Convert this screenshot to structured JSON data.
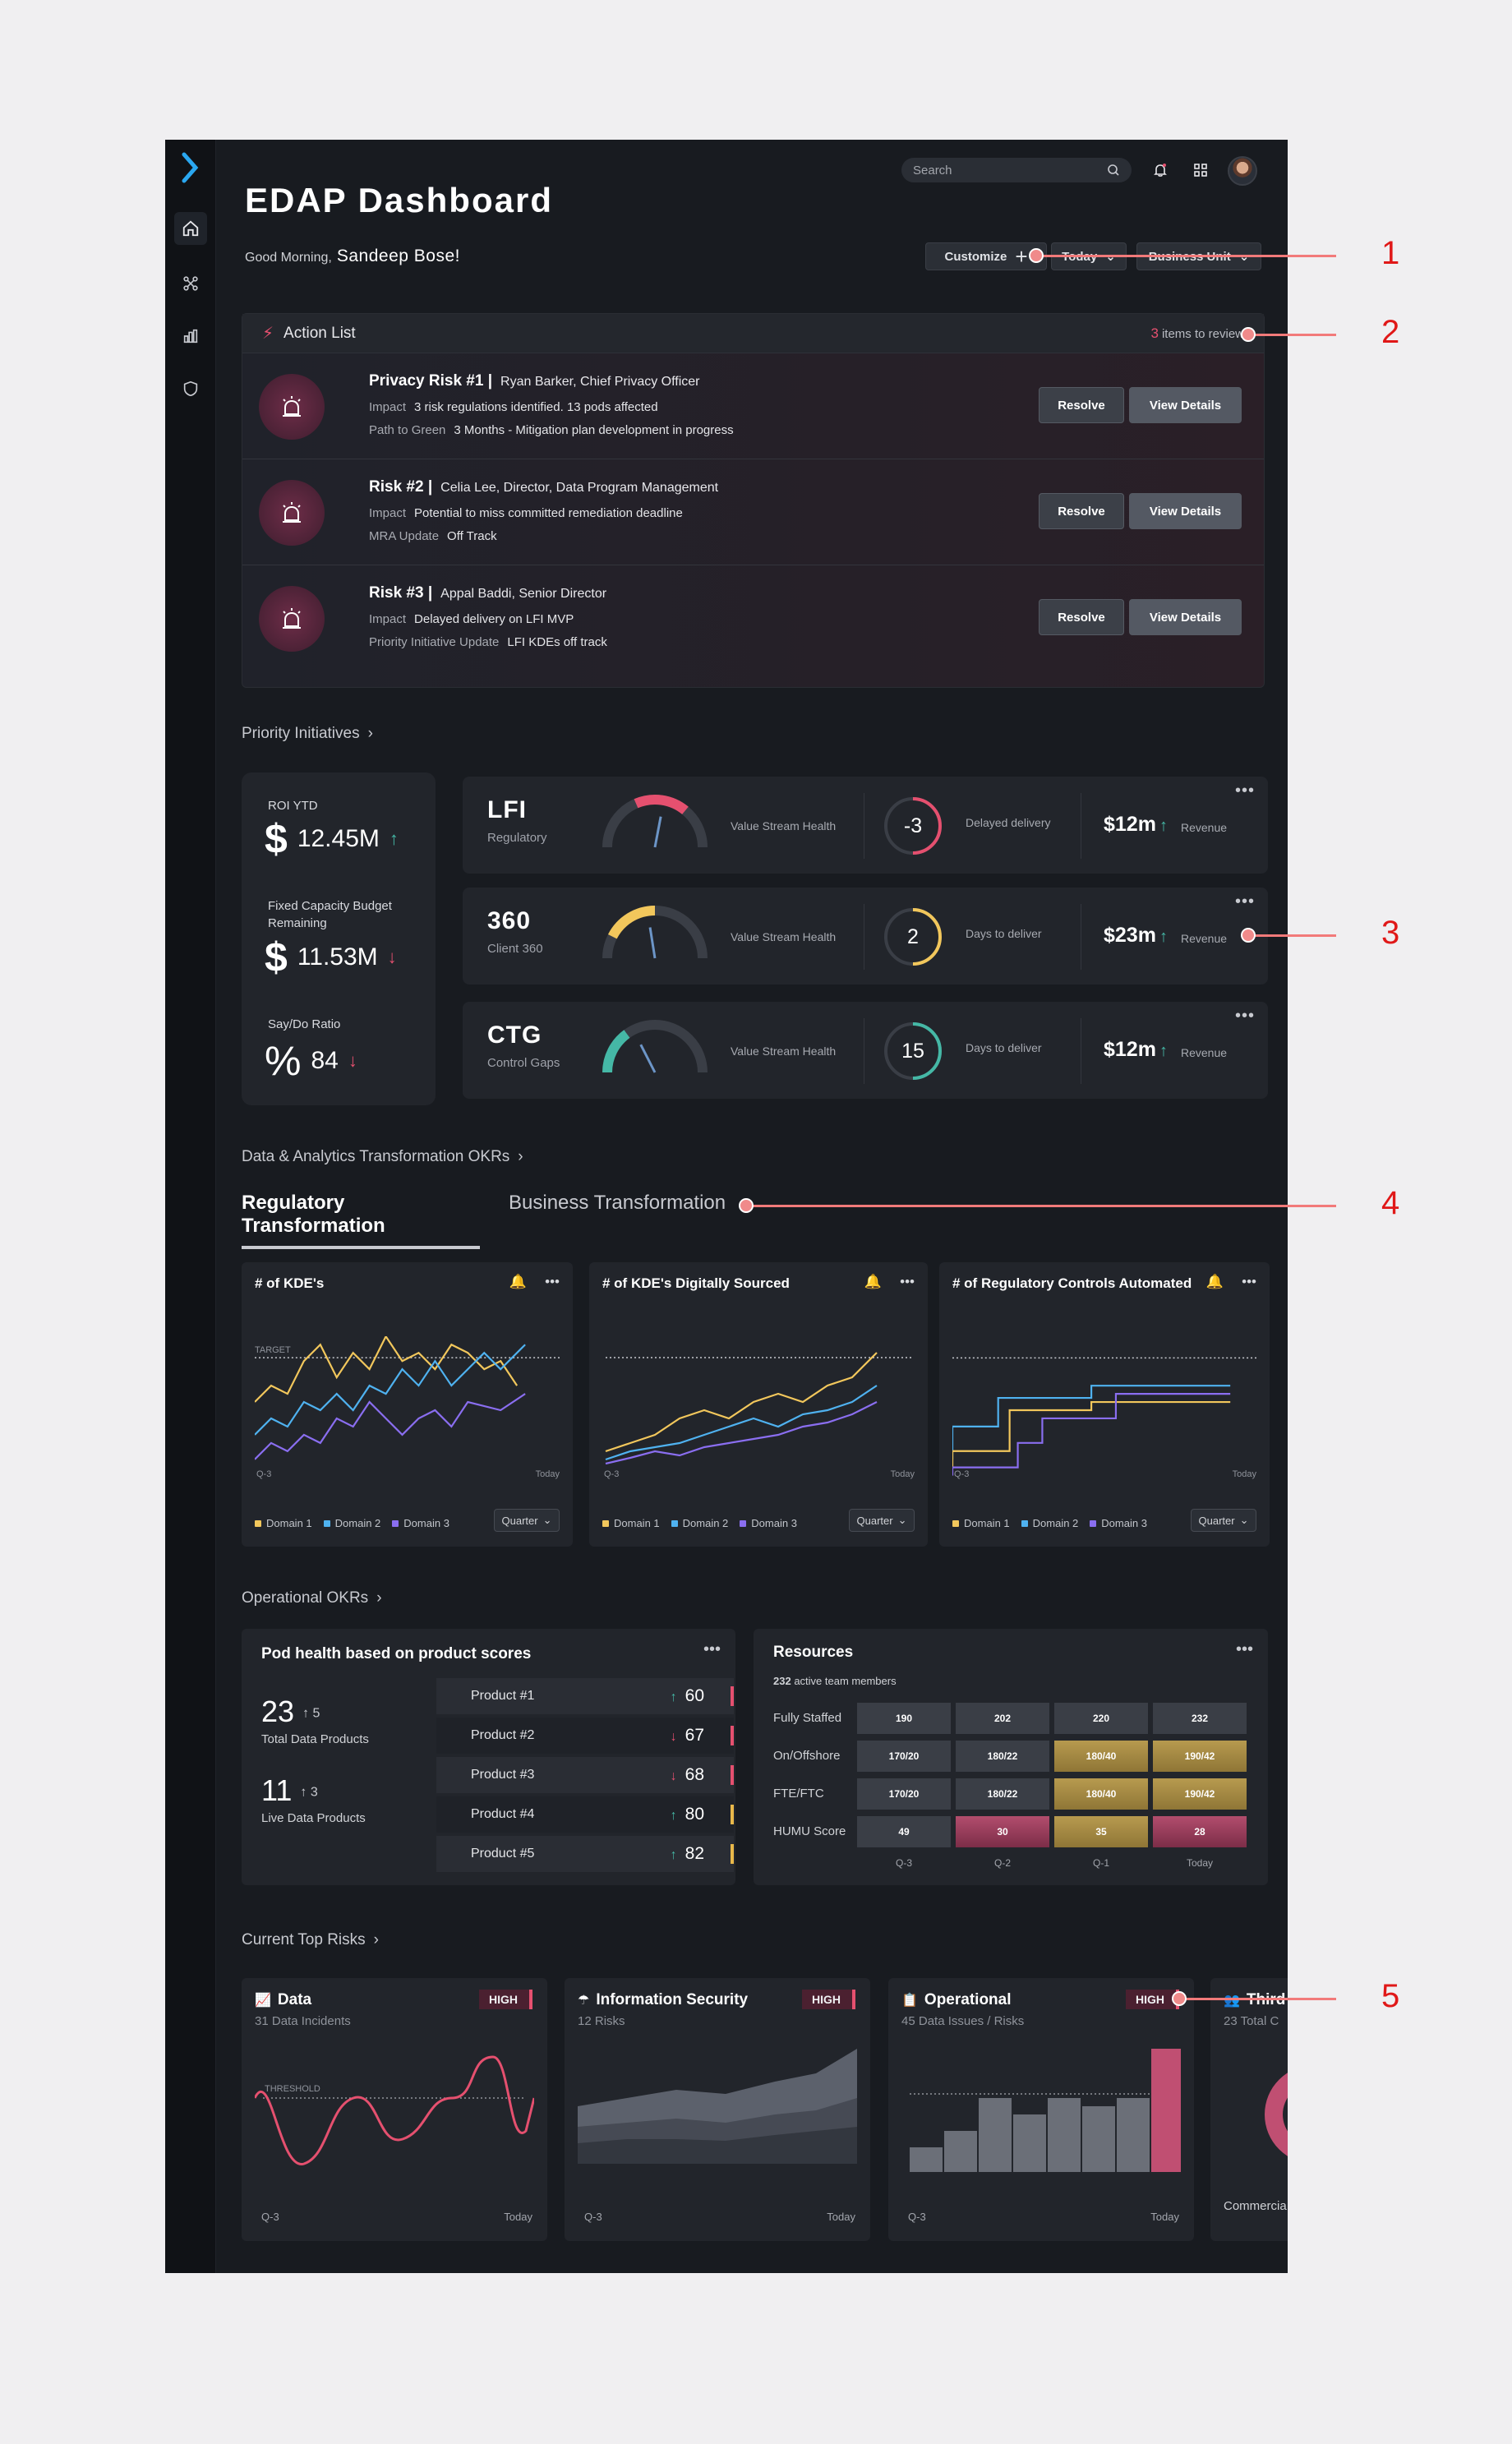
{
  "app": {
    "title": "EDAP Dashboard",
    "greeting_prefix": "Good Morning,",
    "user_name": "Sandeep Bose!"
  },
  "topbar": {
    "search_placeholder": "Search"
  },
  "header_controls": {
    "customize": "Customize",
    "period": "Today",
    "business_unit": "Business Unit"
  },
  "action_list": {
    "title": "Action List",
    "count": "3",
    "count_suffix": "items to review",
    "resolve_label": "Resolve",
    "view_label": "View Details",
    "items": [
      {
        "title": "Privacy Risk #1 |",
        "owner": "Ryan Barker, Chief Privacy Officer",
        "k1": "Impact",
        "v1": "3 risk regulations identified. 13 pods affected",
        "k2": "Path to Green",
        "v2": "3 Months - Mitigation plan development in progress"
      },
      {
        "title": "Risk #2 |",
        "owner": "Celia Lee, Director, Data Program Management",
        "k1": "Impact",
        "v1": "Potential to miss committed remediation deadline",
        "k2": "MRA Update",
        "v2": "Off Track"
      },
      {
        "title": "Risk #3 |",
        "owner": "Appal Baddi, Senior Director",
        "k1": "Impact",
        "v1": "Delayed delivery on LFI MVP",
        "k2": "Priority Initiative Update",
        "v2": "LFI KDEs off track"
      }
    ]
  },
  "priority": {
    "title": "Priority Initiatives",
    "roi_label": "ROI YTD",
    "roi_value": "12.45M",
    "budget_label": "Fixed Capacity Budget Remaining",
    "budget_value": "11.53M",
    "saydo_label": "Say/Do Ratio",
    "saydo_value": "84",
    "dollar": "$",
    "percent": "%",
    "initiatives": [
      {
        "name": "LFI",
        "sub": "Regulatory",
        "health_label": "Value Stream Health",
        "health": 0.72,
        "color": "#e5506f",
        "metric": "-3",
        "metric_label": "Delayed delivery",
        "revenue": "$12m",
        "revenue_label": "Revenue"
      },
      {
        "name": "360",
        "sub": "Client 360",
        "health_label": "Value Stream Health",
        "health": 0.5,
        "color": "#f2c75c",
        "metric": "2",
        "metric_label": "Days to deliver",
        "revenue": "$23m",
        "revenue_label": "Revenue"
      },
      {
        "name": "CTG",
        "sub": "Control Gaps",
        "health_label": "Value Stream Health",
        "health": 0.3,
        "color": "#45b8a6",
        "metric": "15",
        "metric_label": "Days to deliver",
        "revenue": "$12m",
        "revenue_label": "Revenue"
      }
    ]
  },
  "okrs": {
    "title": "Data & Analytics Transformation OKRs",
    "tabs": [
      "Regulatory Transformation",
      "Business Transformation"
    ],
    "cards": [
      {
        "title": "# of KDE's",
        "target": "TARGET",
        "x_start": "Q-3",
        "x_end": "Today"
      },
      {
        "title": "# of KDE's Digitally Sourced",
        "x_start": "Q-3",
        "x_end": "Today"
      },
      {
        "title": "# of Regulatory Controls Automated",
        "x_start": "Q-3",
        "x_end": "Today"
      }
    ],
    "legend": [
      "Domain 1",
      "Domain 2",
      "Domain 3"
    ],
    "legend_colors": [
      "#f2c75c",
      "#4fb2f0",
      "#8a6ef0"
    ],
    "quarter": "Quarter"
  },
  "operational": {
    "title": "Operational OKRs",
    "pod": {
      "title": "Pod health based on product scores",
      "total_value": "23",
      "total_delta": "5",
      "total_label": "Total Data Products",
      "live_value": "11",
      "live_delta": "3",
      "live_label": "Live Data Products",
      "products": [
        {
          "name": "Product #1",
          "arrow": "↑",
          "score": "60",
          "color": "#e5506f"
        },
        {
          "name": "Product #2",
          "arrow": "↓",
          "score": "67",
          "color": "#e5506f"
        },
        {
          "name": "Product #3",
          "arrow": "↓",
          "score": "68",
          "color": "#e5506f"
        },
        {
          "name": "Product #4",
          "arrow": "↑",
          "score": "80",
          "color": "#e8b84a"
        },
        {
          "name": "Product #5",
          "arrow": "↑",
          "score": "82",
          "color": "#e8b84a"
        }
      ]
    },
    "resources": {
      "title": "Resources",
      "members_count": "232",
      "members_label": "active team members",
      "rows": [
        {
          "label": "Fully Staffed",
          "cells": [
            "190",
            "202",
            "220",
            "232"
          ]
        },
        {
          "label": "On/Offshore",
          "cells": [
            "170/20",
            "180/22",
            "180/40",
            "190/42"
          ]
        },
        {
          "label": "FTE/FTC",
          "cells": [
            "170/20",
            "180/22",
            "180/40",
            "190/42"
          ]
        },
        {
          "label": "HUMU Score",
          "cells": [
            "49",
            "30",
            "35",
            "28"
          ]
        }
      ],
      "columns": [
        "Q-3",
        "Q-2",
        "Q-1",
        "Today"
      ]
    }
  },
  "top_risks": {
    "title": "Current Top Risks",
    "high": "HIGH",
    "cards": [
      {
        "title": "Data",
        "sub_count": "31",
        "sub_label": "Data Incidents",
        "threshold": "THRESHOLD",
        "x_start": "Q-3",
        "x_end": "Today"
      },
      {
        "title": "Information Security",
        "sub_count": "12",
        "sub_label": "Risks",
        "x_start": "Q-3",
        "x_end": "Today"
      },
      {
        "title": "Operational",
        "sub_count": "45",
        "sub_label": "Data Issues / Risks",
        "x_start": "Q-3",
        "x_end": "Today"
      },
      {
        "title": "Third",
        "sub_count": "23",
        "sub_label": "Total C",
        "bottom": "Commercia"
      }
    ]
  },
  "callouts": [
    "1",
    "2",
    "3",
    "4",
    "5"
  ]
}
